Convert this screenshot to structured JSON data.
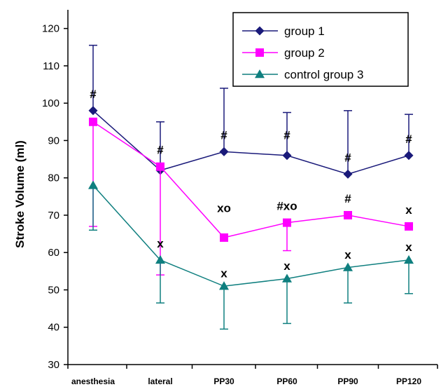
{
  "chart_data": {
    "type": "line",
    "categories": [
      "anesthesia",
      "lateral",
      "PP30",
      "PP60",
      "PP90",
      "PP120"
    ],
    "ylabel": "Stroke Volume (ml)",
    "xlabel": "",
    "ylim": [
      30,
      125
    ],
    "yticks": [
      30,
      40,
      50,
      60,
      70,
      80,
      90,
      100,
      110,
      120
    ],
    "grid": false,
    "legend_position": "top-right",
    "series": [
      {
        "name": "group 1",
        "color": "#1a1a7a",
        "marker": "diamond",
        "values": [
          98,
          82,
          87,
          86,
          81,
          86
        ],
        "error_upper": [
          115.5,
          95,
          104,
          97.5,
          98,
          97
        ],
        "error_lower": [
          null,
          null,
          null,
          null,
          null,
          null
        ]
      },
      {
        "name": "group 2",
        "color": "#ff00ff",
        "marker": "square",
        "values": [
          95,
          83,
          64,
          68,
          70,
          67
        ],
        "error_upper": [
          null,
          null,
          null,
          null,
          null,
          null
        ],
        "error_lower": [
          67,
          54,
          null,
          60.5,
          null,
          null
        ]
      },
      {
        "name": "control group 3",
        "color": "#0f7f7f",
        "marker": "triangle",
        "values": [
          78,
          58,
          51,
          53,
          56,
          58
        ],
        "error_upper": [
          null,
          null,
          null,
          null,
          null,
          null
        ],
        "error_lower": [
          66,
          46.5,
          39.5,
          41,
          46.5,
          49
        ]
      }
    ],
    "annotations": [
      {
        "text": "#",
        "category": "anesthesia",
        "y": 102.5
      },
      {
        "text": "#",
        "category": "lateral",
        "y": 87.5
      },
      {
        "text": "x",
        "category": "lateral",
        "y": 62.5
      },
      {
        "text": "#",
        "category": "PP30",
        "y": 91.5
      },
      {
        "text": "xo",
        "category": "PP30",
        "y": 72
      },
      {
        "text": "x",
        "category": "PP30",
        "y": 54.5
      },
      {
        "text": "#",
        "category": "PP60",
        "y": 91.5
      },
      {
        "text": "#xo",
        "category": "PP60",
        "y": 72.5
      },
      {
        "text": "x",
        "category": "PP60",
        "y": 56.5
      },
      {
        "text": "#",
        "category": "PP90",
        "y": 85.5
      },
      {
        "text": "#",
        "category": "PP90",
        "y": 74.5
      },
      {
        "text": "x",
        "category": "PP90",
        "y": 59.5
      },
      {
        "text": "#",
        "category": "PP120",
        "y": 90.5
      },
      {
        "text": "x",
        "category": "PP120",
        "y": 71.5
      },
      {
        "text": "x",
        "category": "PP120",
        "y": 61.5
      }
    ]
  }
}
